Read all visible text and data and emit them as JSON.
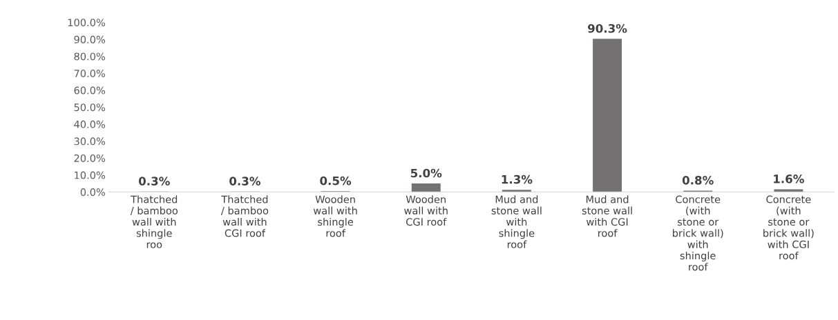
{
  "chart_data": {
    "type": "bar",
    "categories": [
      "Thatched\n/ bamboo\nwall with\nshingle\nroo",
      "Thatched\n/ bamboo\nwall with\nCGI roof",
      "Wooden\nwall with\nshingle\nroof",
      "Wooden\nwall with\nCGI roof",
      "Mud and\nstone wall\nwith\nshingle\nroof",
      "Mud and\nstone wall\nwith CGI\nroof",
      "Concrete\n(with\nstone or\nbrick wall)\nwith\nshingle\nroof",
      "Concrete\n(with\nstone or\nbrick wall)\nwith CGI\nroof"
    ],
    "values": [
      0.3,
      0.3,
      0.5,
      5.0,
      1.3,
      90.3,
      0.8,
      1.6
    ],
    "value_labels": [
      "0.3%",
      "0.3%",
      "0.5%",
      "5.0%",
      "1.3%",
      "90.3%",
      "0.8%",
      "1.6%"
    ],
    "color": "#767171",
    "ylim": [
      0,
      100
    ],
    "yticks": [
      {
        "value": 0,
        "label": "0.0%"
      },
      {
        "value": 10,
        "label": "10.0%"
      },
      {
        "value": 20,
        "label": "20.0%"
      },
      {
        "value": 30,
        "label": "30.0%"
      },
      {
        "value": 40,
        "label": "40.0%"
      },
      {
        "value": 50,
        "label": "50.0%"
      },
      {
        "value": 60,
        "label": "60.0%"
      },
      {
        "value": 70,
        "label": "70.0%"
      },
      {
        "value": 80,
        "label": "80.0%"
      },
      {
        "value": 90,
        "label": "90.0%"
      },
      {
        "value": 100,
        "label": "100.0%"
      }
    ],
    "grid": false
  }
}
